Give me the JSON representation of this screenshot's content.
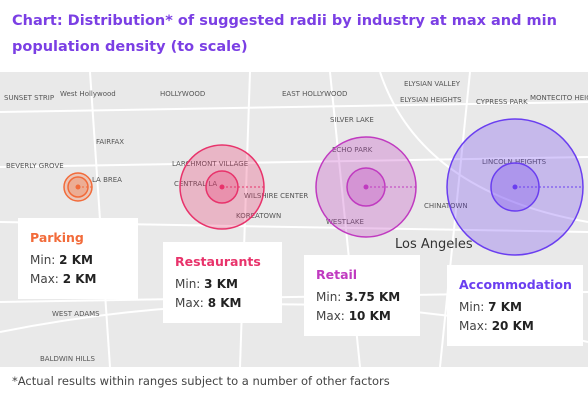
{
  "header": {
    "title": "Chart: Distribution* of suggested radii by industry at max and min population density (to scale)"
  },
  "map_labels": [
    "SUNSET STRIP",
    "West Hollywood",
    "HOLLYWOOD",
    "EAST HOLLYWOOD",
    "ELYSIAN VALLEY",
    "ELYSIAN HEIGHTS",
    "CYPRESS PARK",
    "MONTECITO HEIGHTS",
    "SILVER LAKE",
    "FAIRFAX",
    "BEVERLY GROVE",
    "LA BREA",
    "LARCHMONT VILLAGE",
    "CENTRAL LA",
    "WILSHIRE CENTER",
    "KOREATOWN",
    "ECHO PARK",
    "WESTLAKE",
    "CHINATOWN",
    "LINCOLN HEIGHTS",
    "Los Angeles",
    "WEST ADAMS",
    "BALDWIN HILLS"
  ],
  "cards": [
    {
      "name": "Parking",
      "min_label": "Min:",
      "min": "2 KM",
      "max_label": "Max:",
      "max": "2 KM"
    },
    {
      "name": "Restaurants",
      "min_label": "Min:",
      "min": "3 KM",
      "max_label": "Max:",
      "max": "8 KM"
    },
    {
      "name": "Retail",
      "min_label": "Min:",
      "min": "3.75 KM",
      "max_label": "Max:",
      "max": "10 KM"
    },
    {
      "name": "Accommodation",
      "min_label": "Min:",
      "min": "7 KM",
      "max_label": "Max:",
      "max": "20 KM"
    }
  ],
  "footnote": "*Actual results within ranges subject to a number of other factors"
}
